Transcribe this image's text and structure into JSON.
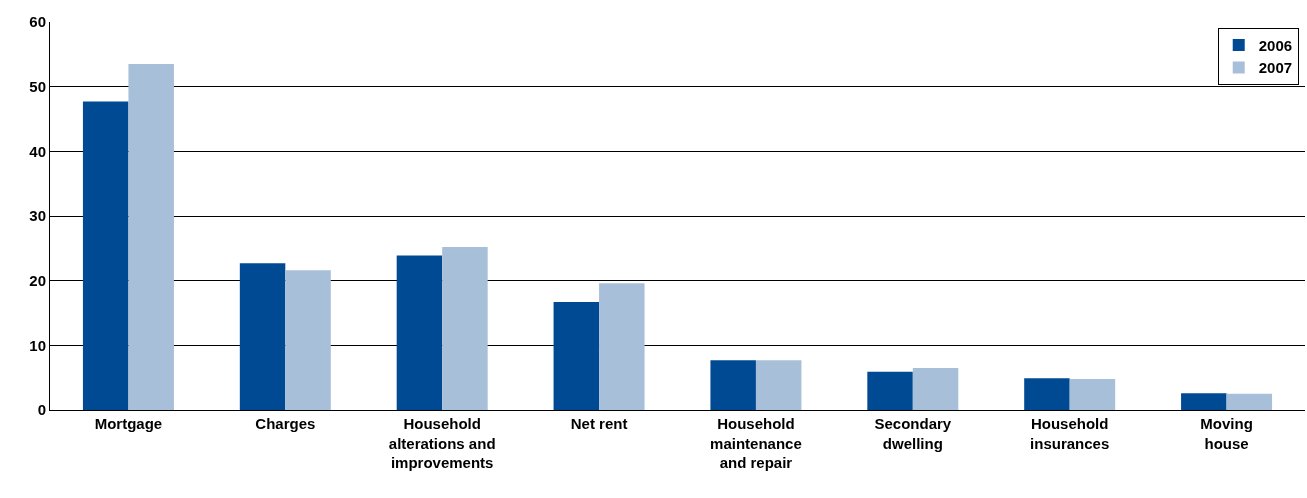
{
  "chart_data": {
    "type": "bar",
    "categories": [
      "Mortgage",
      "Charges",
      "Household\nalterations and\nimprovements",
      "Net rent",
      "Household\nmaintenance\nand repair",
      "Secondary\ndwelling",
      "Household\ninsurances",
      "Moving\nhouse"
    ],
    "series": [
      {
        "name": "2006",
        "color": "#004a93",
        "values": [
          47.7,
          22.7,
          23.9,
          16.7,
          7.7,
          5.9,
          4.9,
          2.6
        ]
      },
      {
        "name": "2007",
        "color": "#a8bfd9",
        "values": [
          53.5,
          21.6,
          25.2,
          19.6,
          7.7,
          6.5,
          4.8,
          2.5
        ]
      }
    ],
    "ylim": [
      0,
      60
    ],
    "yticks": [
      0,
      10,
      20,
      30,
      40,
      50,
      60
    ],
    "grid": "y",
    "legend": "top right"
  }
}
